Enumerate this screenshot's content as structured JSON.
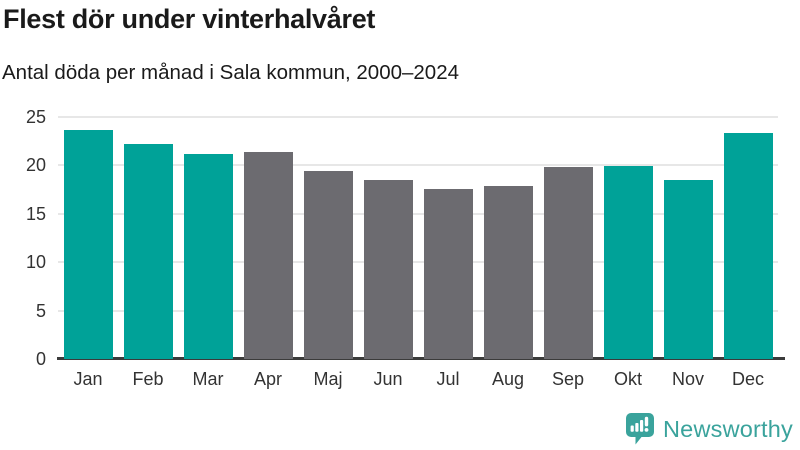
{
  "header": {
    "title": "Flest dör under vinterhalvåret",
    "subtitle": "Antal döda per månad i Sala kommun, 2000–2024"
  },
  "chart_data": {
    "type": "bar",
    "title": "Flest dör under vinterhalvåret",
    "subtitle": "Antal döda per månad i Sala kommun, 2000–2024",
    "categories": [
      "Jan",
      "Feb",
      "Mar",
      "Apr",
      "Maj",
      "Jun",
      "Jul",
      "Aug",
      "Sep",
      "Okt",
      "Nov",
      "Dec"
    ],
    "values": [
      23.7,
      22.2,
      21.2,
      21.4,
      19.4,
      18.5,
      17.6,
      17.9,
      19.8,
      19.9,
      18.5,
      23.4
    ],
    "highlighted": [
      true,
      true,
      true,
      false,
      false,
      false,
      false,
      false,
      false,
      true,
      true,
      true
    ],
    "xlabel": "",
    "ylabel": "",
    "ylim": [
      0,
      25
    ],
    "yticks": [
      0,
      5,
      10,
      15,
      20,
      25
    ],
    "grid": true,
    "legend_position": "none"
  },
  "colors": {
    "highlight": "#00a298",
    "muted": "#6c6b70",
    "brand": "#3aa39c",
    "axis": "#3b3b3b",
    "gridline": "#e7e7e7",
    "tick_text": "#333333"
  },
  "branding": {
    "name": "Newsworthy",
    "icon": "newsworthy-speech-bubble-bar-chart-icon"
  }
}
